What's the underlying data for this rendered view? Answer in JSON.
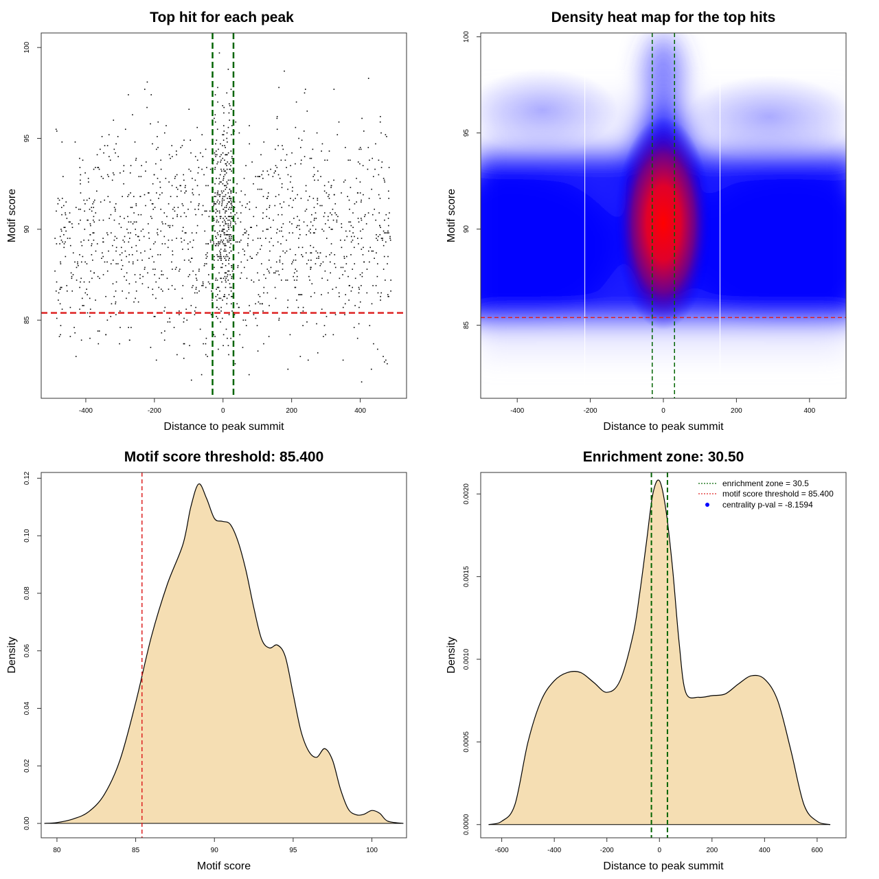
{
  "chart_data": [
    {
      "type": "scatter",
      "title": "Top hit for each peak",
      "xlabel": "Distance to peak summit",
      "ylabel": "Motif score",
      "xlim": [
        -530,
        535
      ],
      "ylim": [
        80.7,
        100.8
      ],
      "xticks": [
        -400,
        -200,
        0,
        200,
        400
      ],
      "yticks": [
        85,
        90,
        95,
        100
      ],
      "xtick_labels": [
        "-400",
        "-200",
        "0",
        "200",
        "400"
      ],
      "ytick_labels": [
        "85",
        "90",
        "95",
        "100"
      ],
      "vlines": [
        -30.5,
        30.5
      ],
      "vline_color": "#006400",
      "hline": 85.4,
      "hline_color": "#dd2020",
      "n_points": 1650,
      "points_note": "approx. 1650 top hits spread over x -490..490, y ~82..100, concentrated between the green lines"
    },
    {
      "type": "heatmap",
      "title": "Density heat map for the top hits",
      "xlabel": "Distance to peak summit",
      "ylabel": "Motif score",
      "xlim": [
        -500,
        500
      ],
      "ylim": [
        81.2,
        100.2
      ],
      "xticks": [
        -400,
        -200,
        0,
        200,
        400
      ],
      "yticks": [
        85,
        90,
        95,
        100
      ],
      "xtick_labels": [
        "-400",
        "-200",
        "0",
        "200",
        "400"
      ],
      "ytick_labels": [
        "85",
        "90",
        "95",
        "100"
      ],
      "vlines": [
        -30.5,
        30.5
      ],
      "vline_color": "#006400",
      "hline": 85.4,
      "hline_color": "#dd2020",
      "grid_lines_x": [
        -215,
        155
      ],
      "color_scale": [
        "#ffffff",
        "#0000ff",
        "#ff0000"
      ],
      "density_peaks": [
        {
          "x": 0,
          "y": 90.5,
          "level": "high"
        },
        {
          "x": -250,
          "y": 89,
          "level": "medium"
        },
        {
          "x": 300,
          "y": 89.5,
          "level": "medium"
        }
      ]
    },
    {
      "type": "area",
      "title": "Motif score threshold: 85.400",
      "xlabel": "Motif score",
      "ylabel": "Density",
      "xlim": [
        79,
        102.2
      ],
      "ylim": [
        -0.005,
        0.122
      ],
      "xticks": [
        80,
        85,
        90,
        95,
        100
      ],
      "yticks": [
        0.0,
        0.02,
        0.04,
        0.06,
        0.08,
        0.1,
        0.12
      ],
      "xtick_labels": [
        "80",
        "85",
        "90",
        "95",
        "100"
      ],
      "ytick_labels": [
        "0.00",
        "0.02",
        "0.04",
        "0.06",
        "0.08",
        "0.10",
        "0.12"
      ],
      "fill_color": "#f5deb3",
      "vline": 85.4,
      "vline_color": "#dd2020",
      "x": [
        79.2,
        80,
        81,
        82,
        83,
        84,
        85,
        86,
        87,
        88,
        88.5,
        89,
        89.5,
        90,
        90.5,
        91,
        91.5,
        92,
        92.5,
        93,
        93.5,
        94,
        94.5,
        95,
        95.5,
        96,
        96.5,
        97,
        97.5,
        98,
        98.5,
        99,
        99.5,
        100,
        100.5,
        101,
        102
      ],
      "y": [
        0.0,
        0.0003,
        0.0015,
        0.004,
        0.01,
        0.022,
        0.042,
        0.065,
        0.083,
        0.097,
        0.11,
        0.118,
        0.113,
        0.106,
        0.105,
        0.104,
        0.098,
        0.088,
        0.075,
        0.064,
        0.061,
        0.062,
        0.058,
        0.045,
        0.032,
        0.025,
        0.023,
        0.026,
        0.022,
        0.012,
        0.005,
        0.003,
        0.0032,
        0.0045,
        0.0035,
        0.0008,
        0.0
      ]
    },
    {
      "type": "area",
      "title": "Enrichment zone: 30.50",
      "xlabel": "Distance to peak summit",
      "ylabel": "Density",
      "xlim": [
        -680,
        710
      ],
      "ylim": [
        -8e-05,
        0.00213
      ],
      "xticks": [
        -600,
        -400,
        -200,
        0,
        200,
        400,
        600
      ],
      "yticks": [
        0.0,
        0.0005,
        0.001,
        0.0015,
        0.002
      ],
      "xtick_labels": [
        "-600",
        "-400",
        "-200",
        "0",
        "200",
        "400",
        "600"
      ],
      "ytick_labels": [
        "0.0000",
        "0.0005",
        "0.0010",
        "0.0015",
        "0.0020"
      ],
      "fill_color": "#f5deb3",
      "vlines": [
        -30.5,
        30.5
      ],
      "vline_color": "#006400",
      "x": [
        -650,
        -600,
        -550,
        -500,
        -450,
        -400,
        -350,
        -300,
        -250,
        -200,
        -150,
        -100,
        -75,
        -50,
        -25,
        0,
        25,
        50,
        75,
        100,
        150,
        200,
        250,
        300,
        350,
        400,
        450,
        500,
        550,
        600,
        650
      ],
      "y": [
        0.0,
        2e-05,
        0.00012,
        0.0005,
        0.00075,
        0.00087,
        0.00092,
        0.00092,
        0.00086,
        0.0008,
        0.00087,
        0.00115,
        0.0014,
        0.0017,
        0.002,
        0.00208,
        0.0019,
        0.00155,
        0.0011,
        0.0008,
        0.00077,
        0.00078,
        0.00079,
        0.00085,
        0.0009,
        0.00088,
        0.00075,
        0.00045,
        0.00012,
        2e-05,
        0.0
      ],
      "legend": [
        {
          "label": "enrichment zone = 30.5",
          "color": "#006400",
          "style": "dotted-line"
        },
        {
          "label": "motif score threshold = 85.400",
          "color": "#dd2020",
          "style": "dotted-line"
        },
        {
          "label": "centrality p-val = -8.1594",
          "color": "#0000ff",
          "style": "point"
        }
      ],
      "legend_position": "top-right"
    }
  ]
}
